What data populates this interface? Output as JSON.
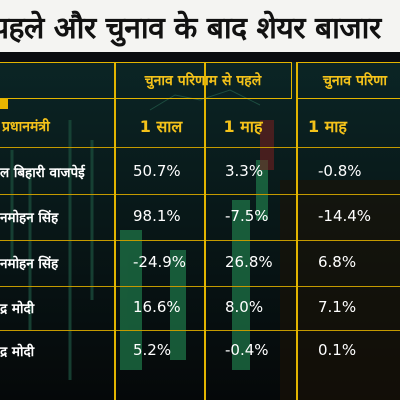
{
  "title": "पहले और चुनाव के बाद शेयर बाजार",
  "group_headers": {
    "before": "चुनाव परिणाम से पहले",
    "after": "चुनाव परिणा"
  },
  "columns": {
    "name": "प्रधानमंत्री",
    "before_1y": "1 साल",
    "before_1m": "1 माह",
    "after_1m": "1 माह"
  },
  "rows": [
    {
      "name": "ल बिहारी वाजपेई",
      "before_1y": "50.7%",
      "before_1m": "3.3%",
      "after_1m": "-0.8%"
    },
    {
      "name": "नमोहन सिंह",
      "before_1y": "98.1%",
      "before_1m": "-7.5%",
      "after_1m": "-14.4%"
    },
    {
      "name": "नमोहन सिंह",
      "before_1y": "-24.9%",
      "before_1m": "26.8%",
      "after_1m": "6.8%"
    },
    {
      "name": "द्र मोदी",
      "before_1y": "16.6%",
      "before_1m": "8.0%",
      "after_1m": "7.1%"
    },
    {
      "name": "द्र मोदी",
      "before_1y": "5.2%",
      "before_1m": "-0.4%",
      "after_1m": "0.1%"
    }
  ],
  "colors": {
    "accent": "#f4c21a",
    "border": "#e2b400",
    "background": "#05080b"
  }
}
